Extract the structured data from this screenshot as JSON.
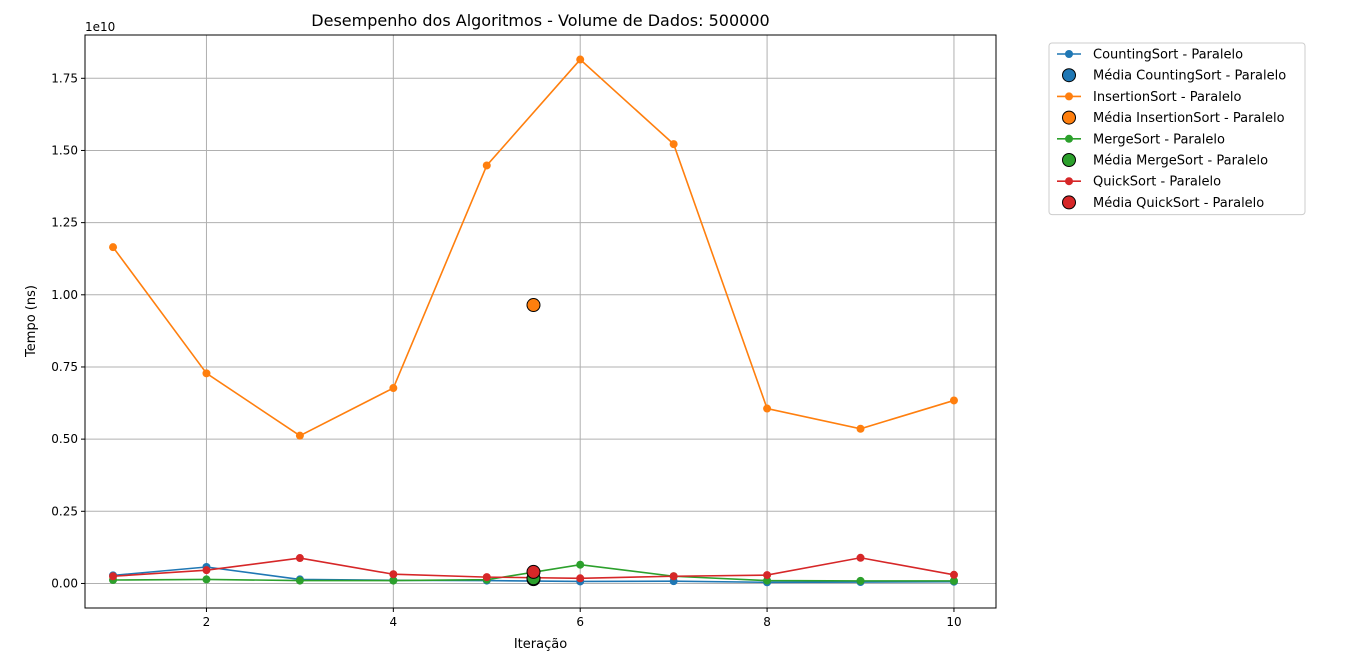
{
  "chart_data": {
    "type": "line",
    "title": "Desempenho dos Algoritmos - Volume de Dados: 500000",
    "xlabel": "Iteração",
    "ylabel": "Tempo (ns)",
    "y_multiplier_label": "1e10",
    "y_scale": 10000000000,
    "xlim": [
      0.7,
      10.45
    ],
    "ylim": [
      -0.085,
      1.9
    ],
    "x_ticks": [
      2,
      4,
      6,
      8,
      10
    ],
    "x_tick_labels": [
      "2",
      "4",
      "6",
      "8",
      "10"
    ],
    "y_ticks": [
      0.0,
      0.25,
      0.5,
      0.75,
      1.0,
      1.25,
      1.5,
      1.75
    ],
    "y_tick_labels": [
      "0.00",
      "0.25",
      "0.50",
      "0.75",
      "1.00",
      "1.25",
      "1.50",
      "1.75"
    ],
    "grid": true,
    "legend_position": "outside-top-right",
    "x": [
      1,
      2,
      3,
      4,
      5,
      6,
      7,
      8,
      9,
      10
    ],
    "series": [
      {
        "name": "CountingSort - Paralelo",
        "color": "#1f77b4",
        "values": [
          0.028,
          0.057,
          0.014,
          0.011,
          0.01,
          0.007,
          0.008,
          0.004,
          0.005,
          0.006
        ],
        "mean_name": "Média CountingSort - Paralelo",
        "mean_x": 5.5,
        "mean_y": 0.015
      },
      {
        "name": "InsertionSort - Paralelo",
        "color": "#ff7f0e",
        "values": [
          1.165,
          0.728,
          0.512,
          0.677,
          1.448,
          1.815,
          1.522,
          0.606,
          0.536,
          0.634
        ],
        "mean_name": "Média InsertionSort - Paralelo",
        "mean_x": 5.5,
        "mean_y": 0.9645
      },
      {
        "name": "MergeSort - Paralelo",
        "color": "#2ca02c",
        "values": [
          0.012,
          0.014,
          0.01,
          0.01,
          0.013,
          0.065,
          0.025,
          0.01,
          0.009,
          0.009
        ],
        "mean_name": "Média MergeSort - Paralelo",
        "mean_x": 5.5,
        "mean_y": 0.018
      },
      {
        "name": "QuickSort - Paralelo",
        "color": "#d62728",
        "values": [
          0.025,
          0.046,
          0.088,
          0.032,
          0.022,
          0.018,
          0.025,
          0.029,
          0.089,
          0.03
        ],
        "mean_name": "Média QuickSort - Paralelo",
        "mean_x": 5.5,
        "mean_y": 0.04
      }
    ]
  }
}
